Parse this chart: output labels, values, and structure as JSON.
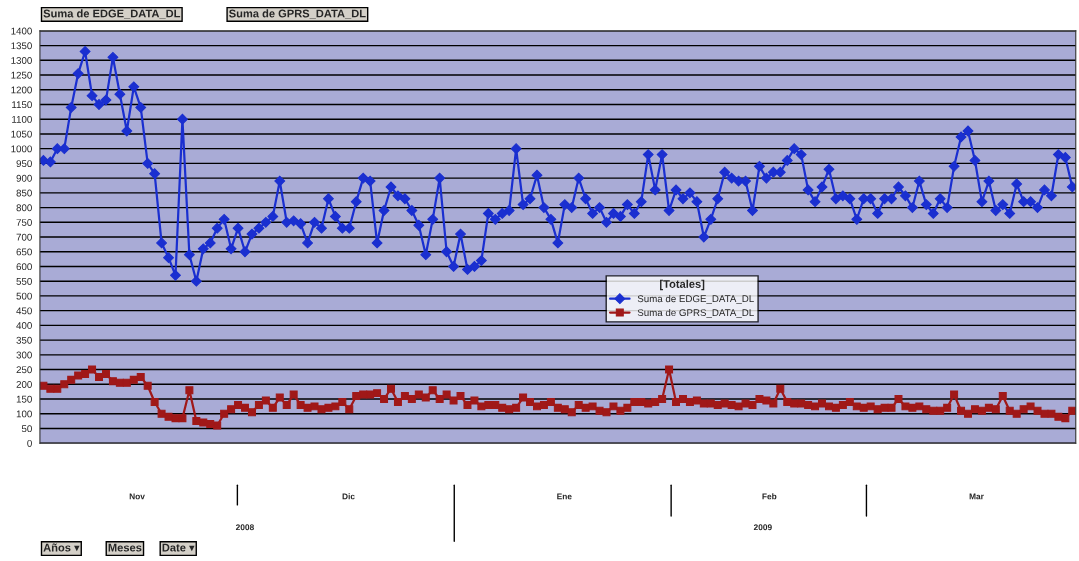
{
  "chart_data": {
    "type": "line",
    "categories": [
      null,
      null,
      null,
      null,
      null,
      null,
      null,
      null,
      null,
      null,
      null,
      null,
      null,
      null,
      null,
      null,
      null,
      null,
      null,
      null,
      null,
      null,
      null,
      null,
      null,
      null,
      null,
      null,
      null,
      null,
      null,
      null,
      null,
      null,
      null,
      null,
      null,
      null,
      null,
      null,
      null,
      null,
      null,
      null,
      null,
      null,
      null,
      null,
      null,
      null,
      null,
      null,
      null,
      null,
      null,
      null,
      null,
      null,
      null,
      null,
      null,
      null,
      null,
      null,
      null,
      null,
      null,
      null,
      null,
      null,
      null,
      null,
      null,
      null,
      null,
      null,
      null,
      null,
      null,
      null,
      null,
      null,
      null,
      null,
      null,
      null,
      null,
      null,
      null,
      null,
      null,
      null,
      null,
      null,
      null,
      null,
      null,
      null,
      null,
      null,
      null,
      null,
      null,
      null,
      null,
      null,
      null,
      null,
      null,
      null,
      null,
      null,
      null,
      null,
      null,
      null,
      null,
      null,
      null,
      null,
      null,
      null,
      null,
      null,
      null,
      null,
      null,
      null,
      null,
      null,
      null,
      null,
      null,
      null,
      null,
      null,
      null,
      null,
      null,
      null,
      null,
      null,
      null,
      null,
      null,
      null,
      null,
      null,
      null
    ],
    "series": [
      {
        "name": "Suma de EDGE_DATA_DL",
        "color": "#1a2fd0",
        "marker": "diamond",
        "values": [
          960,
          955,
          1000,
          1000,
          1140,
          1255,
          1330,
          1180,
          1150,
          1165,
          1310,
          1185,
          1060,
          1210,
          1140,
          950,
          915,
          680,
          630,
          570,
          1100,
          640,
          550,
          660,
          680,
          730,
          760,
          660,
          730,
          650,
          710,
          730,
          750,
          770,
          890,
          750,
          755,
          745,
          680,
          750,
          730,
          830,
          770,
          730,
          730,
          820,
          900,
          890,
          680,
          790,
          870,
          840,
          830,
          790,
          740,
          640,
          760,
          900,
          650,
          600,
          710,
          590,
          600,
          620,
          780,
          760,
          780,
          790,
          1000,
          810,
          830,
          910,
          800,
          760,
          680,
          810,
          800,
          900,
          830,
          780,
          800,
          750,
          780,
          770,
          810,
          780,
          820,
          980,
          860,
          980,
          790,
          860,
          830,
          850,
          820,
          700,
          760,
          830,
          920,
          900,
          890,
          890,
          790,
          940,
          900,
          920,
          920,
          960,
          1000,
          980,
          860,
          820,
          870,
          930,
          830,
          840,
          830,
          760,
          830,
          830,
          780,
          830,
          830,
          870,
          840,
          800,
          890,
          810,
          780,
          830,
          800,
          940,
          1040,
          1060,
          960,
          820,
          890,
          790,
          810,
          780,
          880,
          820,
          820,
          800,
          860,
          840,
          980,
          970,
          870
        ]
      },
      {
        "name": "Suma de GPRS_DATA_DL",
        "color": "#a01818",
        "marker": "square",
        "values": [
          195,
          185,
          185,
          200,
          215,
          230,
          235,
          250,
          225,
          235,
          210,
          205,
          205,
          215,
          225,
          195,
          140,
          100,
          90,
          85,
          85,
          180,
          75,
          70,
          65,
          60,
          100,
          115,
          130,
          120,
          105,
          130,
          145,
          120,
          155,
          130,
          165,
          130,
          120,
          125,
          115,
          120,
          125,
          140,
          115,
          160,
          165,
          165,
          170,
          150,
          185,
          140,
          160,
          150,
          165,
          155,
          180,
          150,
          165,
          145,
          160,
          130,
          145,
          125,
          130,
          130,
          120,
          115,
          120,
          155,
          140,
          125,
          130,
          140,
          120,
          115,
          105,
          130,
          120,
          125,
          110,
          105,
          125,
          110,
          120,
          140,
          140,
          135,
          140,
          150,
          250,
          140,
          150,
          140,
          145,
          135,
          135,
          130,
          135,
          130,
          125,
          135,
          130,
          150,
          145,
          135,
          185,
          140,
          135,
          135,
          130,
          125,
          135,
          125,
          120,
          130,
          140,
          125,
          120,
          125,
          115,
          120,
          120,
          150,
          125,
          120,
          125,
          115,
          110,
          110,
          120,
          165,
          110,
          100,
          115,
          110,
          120,
          115,
          160,
          110,
          100,
          115,
          125,
          110,
          100,
          100,
          90,
          85,
          110
        ]
      }
    ],
    "ylim": [
      0,
      1400
    ],
    "yticks": [
      0,
      50,
      100,
      150,
      200,
      250,
      300,
      350,
      400,
      450,
      500,
      550,
      600,
      650,
      700,
      750,
      800,
      850,
      900,
      950,
      1000,
      1050,
      1100,
      1150,
      1200,
      1250,
      1300,
      1350,
      1400
    ],
    "grid": "y",
    "legend": "center",
    "legend_title": "[Totales]",
    "annotations": [
      "Suma de EDGE_DATA_DL",
      "Suma de GPRS_DATA_DL",
      "Nov",
      "Dic",
      "Ene",
      "Feb",
      "Mar",
      "2008",
      "2009",
      "Años ▾",
      "Meses",
      "Date ▾"
    ]
  }
}
